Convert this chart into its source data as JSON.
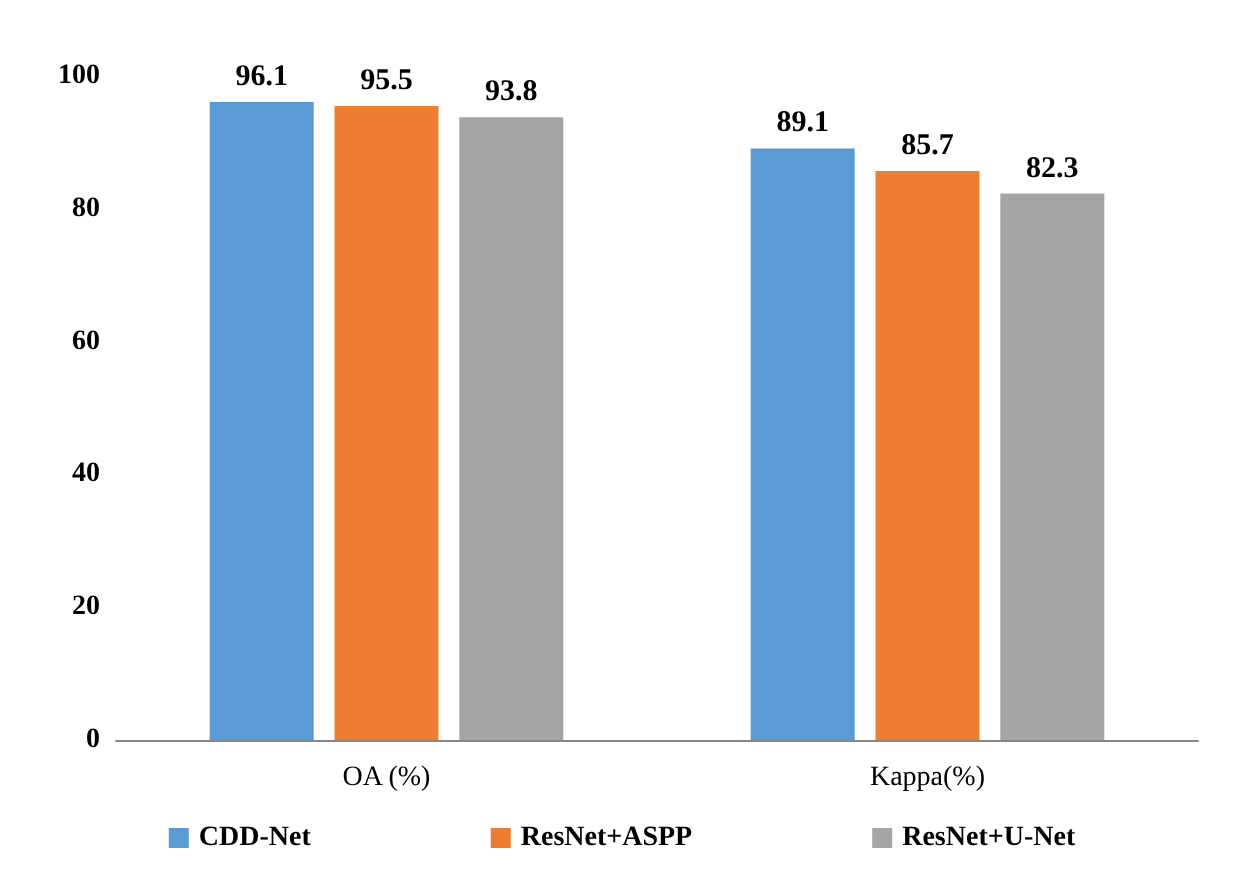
{
  "chart_data": {
    "type": "bar",
    "categories": [
      "OA (%)",
      "Kappa(%)"
    ],
    "series": [
      {
        "name": "CDD-Net",
        "color": "#5b9bd5",
        "values": [
          96.1,
          89.1
        ]
      },
      {
        "name": "ResNet+ASPP",
        "color": "#ed7d31",
        "values": [
          95.5,
          85.7
        ]
      },
      {
        "name": "ResNet+U-Net",
        "color": "#a5a5a5",
        "values": [
          93.8,
          82.3
        ]
      }
    ],
    "ylim": [
      0,
      100
    ],
    "yticks": [
      0,
      20,
      40,
      60,
      80,
      100
    ],
    "data_labels": true,
    "legend": "bottom",
    "grid": false
  }
}
